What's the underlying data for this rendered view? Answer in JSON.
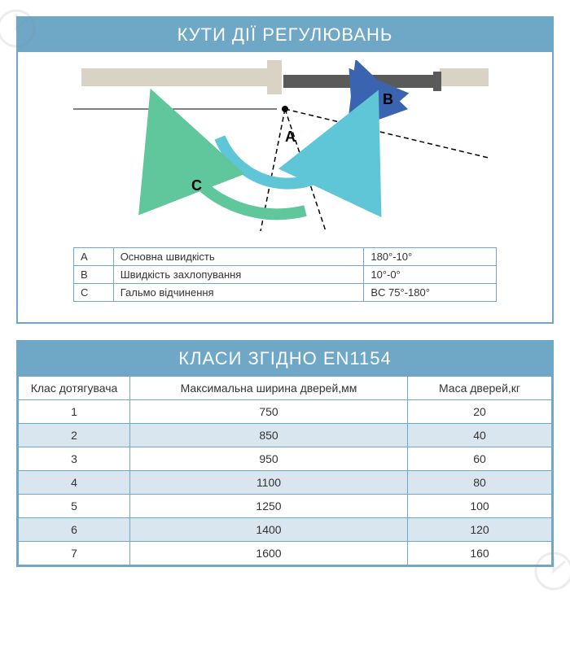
{
  "panel1": {
    "title": "КУТИ ДІЇ РЕГУЛЮВАНЬ",
    "diagram": {
      "labels": {
        "A": "A",
        "B": "B",
        "C": "C"
      },
      "colors": {
        "frame": "#d9d3c5",
        "door": "#5a5a5a",
        "arrowA": "#5fc6d8",
        "arrowB": "#3a64b0",
        "arrowC": "#5fc79b",
        "dashed": "#000000"
      }
    },
    "table": {
      "rows": [
        {
          "key": "A",
          "desc": "Основна швидкість",
          "range": "180°-10°"
        },
        {
          "key": "B",
          "desc": "Швидкість захлопування",
          "range": "10°-0°"
        },
        {
          "key": "C",
          "desc": "Гальмо відчинення",
          "range": "BC 75°-180°"
        }
      ]
    }
  },
  "panel2": {
    "title": "КЛАСИ ЗГІДНО EN1154",
    "headers": {
      "class": "Клас дотягувача",
      "width": "Максимальна ширина дверей,мм",
      "mass": "Маса дверей,кг"
    },
    "rows": [
      {
        "class": "1",
        "width": "750",
        "mass": "20",
        "shaded": false
      },
      {
        "class": "2",
        "width": "850",
        "mass": "40",
        "shaded": true
      },
      {
        "class": "3",
        "width": "950",
        "mass": "60",
        "shaded": false
      },
      {
        "class": "4",
        "width": "1100",
        "mass": "80",
        "shaded": true
      },
      {
        "class": "5",
        "width": "1250",
        "mass": "100",
        "shaded": false
      },
      {
        "class": "6",
        "width": "1400",
        "mass": "120",
        "shaded": true
      },
      {
        "class": "7",
        "width": "1600",
        "mass": "160",
        "shaded": false
      }
    ]
  },
  "colors": {
    "border": "#6fa8c7",
    "headerBg": "#6fa8c7",
    "headerText": "#ffffff",
    "shadedRow": "#d9e6f0"
  }
}
